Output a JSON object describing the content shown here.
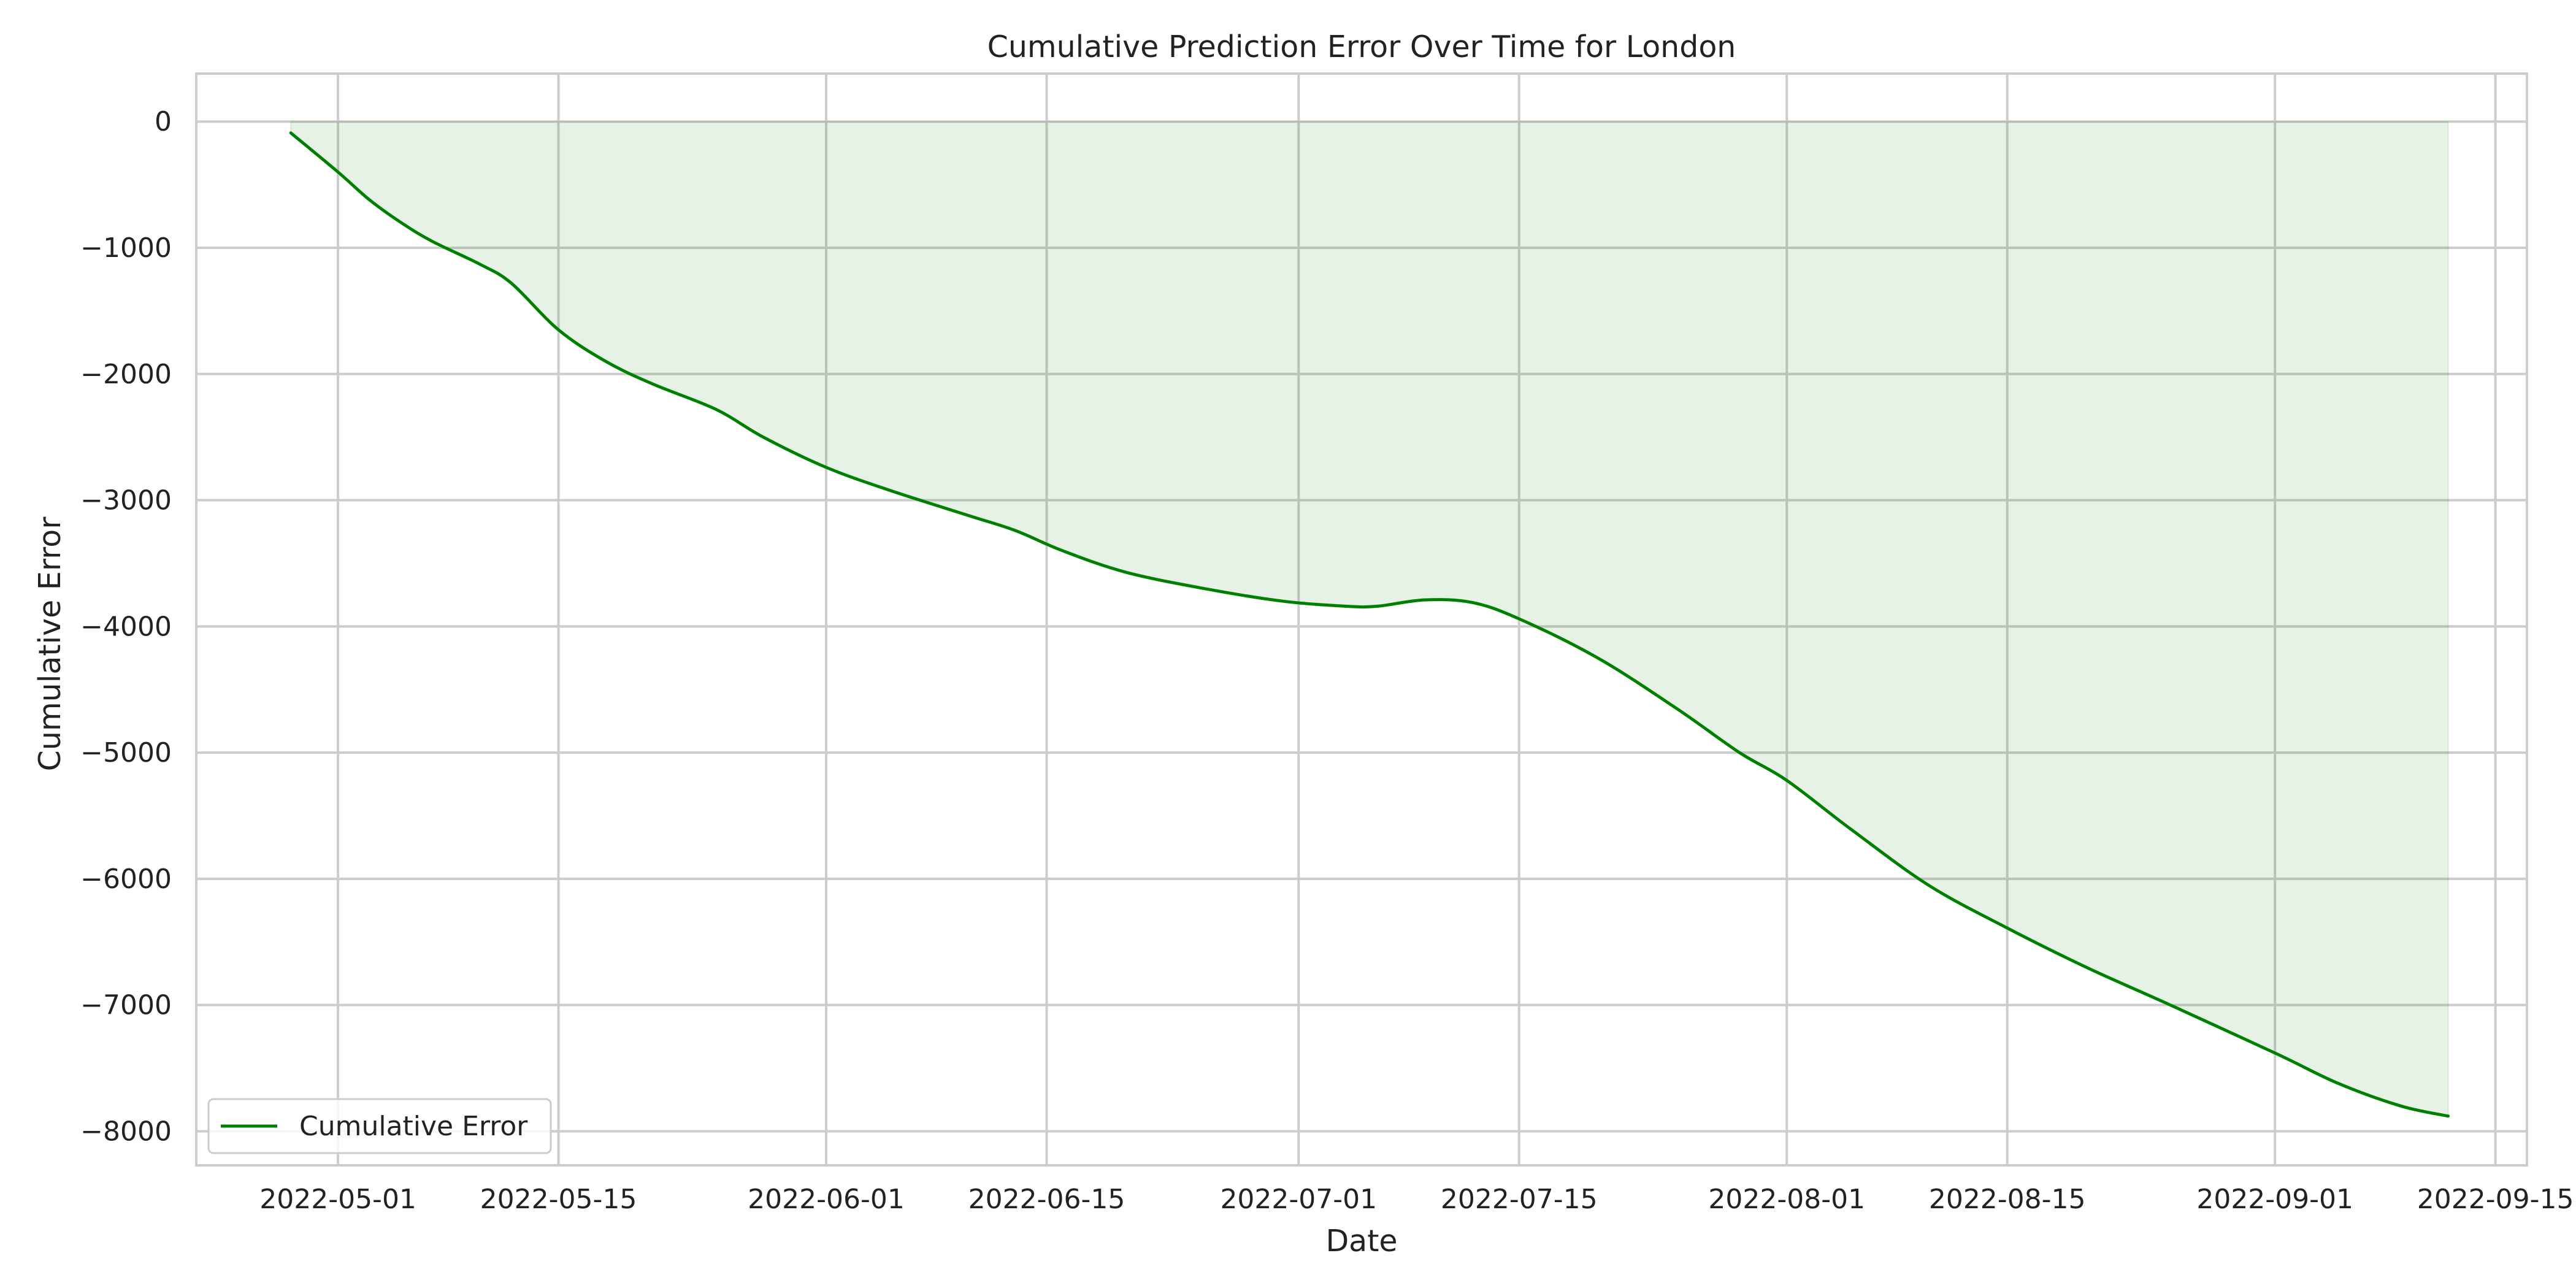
{
  "chart_data": {
    "type": "area",
    "title": "Cumulative Prediction Error Over Time for London",
    "xlabel": "Date",
    "ylabel": "Cumulative Error",
    "x_range": [
      "2022-04-22",
      "2022-09-17"
    ],
    "ylim": [
      -8270,
      380
    ],
    "grid": true,
    "legend_placement": "lower-left",
    "x_ticks": [
      "2022-05-01",
      "2022-05-15",
      "2022-06-01",
      "2022-06-15",
      "2022-07-01",
      "2022-07-15",
      "2022-08-01",
      "2022-08-15",
      "2022-09-01",
      "2022-09-15"
    ],
    "y_ticks": [
      0,
      -1000,
      -2000,
      -3000,
      -4000,
      -5000,
      -6000,
      -7000,
      -8000
    ],
    "y_tick_labels": [
      "0",
      "−1000",
      "−2000",
      "−3000",
      "−4000",
      "−5000",
      "−6000",
      "−7000",
      "−8000"
    ],
    "series": [
      {
        "name": "Cumulative Error",
        "color": "#008000",
        "fill_color": "#008000",
        "fill_opacity": 0.1,
        "fill_to": 0,
        "points": [
          [
            "2022-04-28",
            -90
          ],
          [
            "2022-05-01",
            -400
          ],
          [
            "2022-05-03",
            -620
          ],
          [
            "2022-05-05",
            -800
          ],
          [
            "2022-05-07",
            -950
          ],
          [
            "2022-05-10",
            -1130
          ],
          [
            "2022-05-12",
            -1280
          ],
          [
            "2022-05-15",
            -1650
          ],
          [
            "2022-05-18",
            -1900
          ],
          [
            "2022-05-21",
            -2080
          ],
          [
            "2022-05-25",
            -2280
          ],
          [
            "2022-05-28",
            -2500
          ],
          [
            "2022-06-01",
            -2740
          ],
          [
            "2022-06-05",
            -2920
          ],
          [
            "2022-06-10",
            -3120
          ],
          [
            "2022-06-13",
            -3240
          ],
          [
            "2022-06-16",
            -3400
          ],
          [
            "2022-06-20",
            -3570
          ],
          [
            "2022-06-25",
            -3700
          ],
          [
            "2022-06-30",
            -3800
          ],
          [
            "2022-07-04",
            -3840
          ],
          [
            "2022-07-06",
            -3840
          ],
          [
            "2022-07-09",
            -3790
          ],
          [
            "2022-07-12",
            -3810
          ],
          [
            "2022-07-15",
            -3940
          ],
          [
            "2022-07-20",
            -4250
          ],
          [
            "2022-07-25",
            -4650
          ],
          [
            "2022-07-29",
            -5000
          ],
          [
            "2022-08-01",
            -5220
          ],
          [
            "2022-08-05",
            -5600
          ],
          [
            "2022-08-10",
            -6050
          ],
          [
            "2022-08-15",
            -6390
          ],
          [
            "2022-08-20",
            -6700
          ],
          [
            "2022-08-25",
            -6980
          ],
          [
            "2022-09-01",
            -7380
          ],
          [
            "2022-09-05",
            -7620
          ],
          [
            "2022-09-09",
            -7800
          ],
          [
            "2022-09-12",
            -7880
          ]
        ]
      }
    ]
  }
}
